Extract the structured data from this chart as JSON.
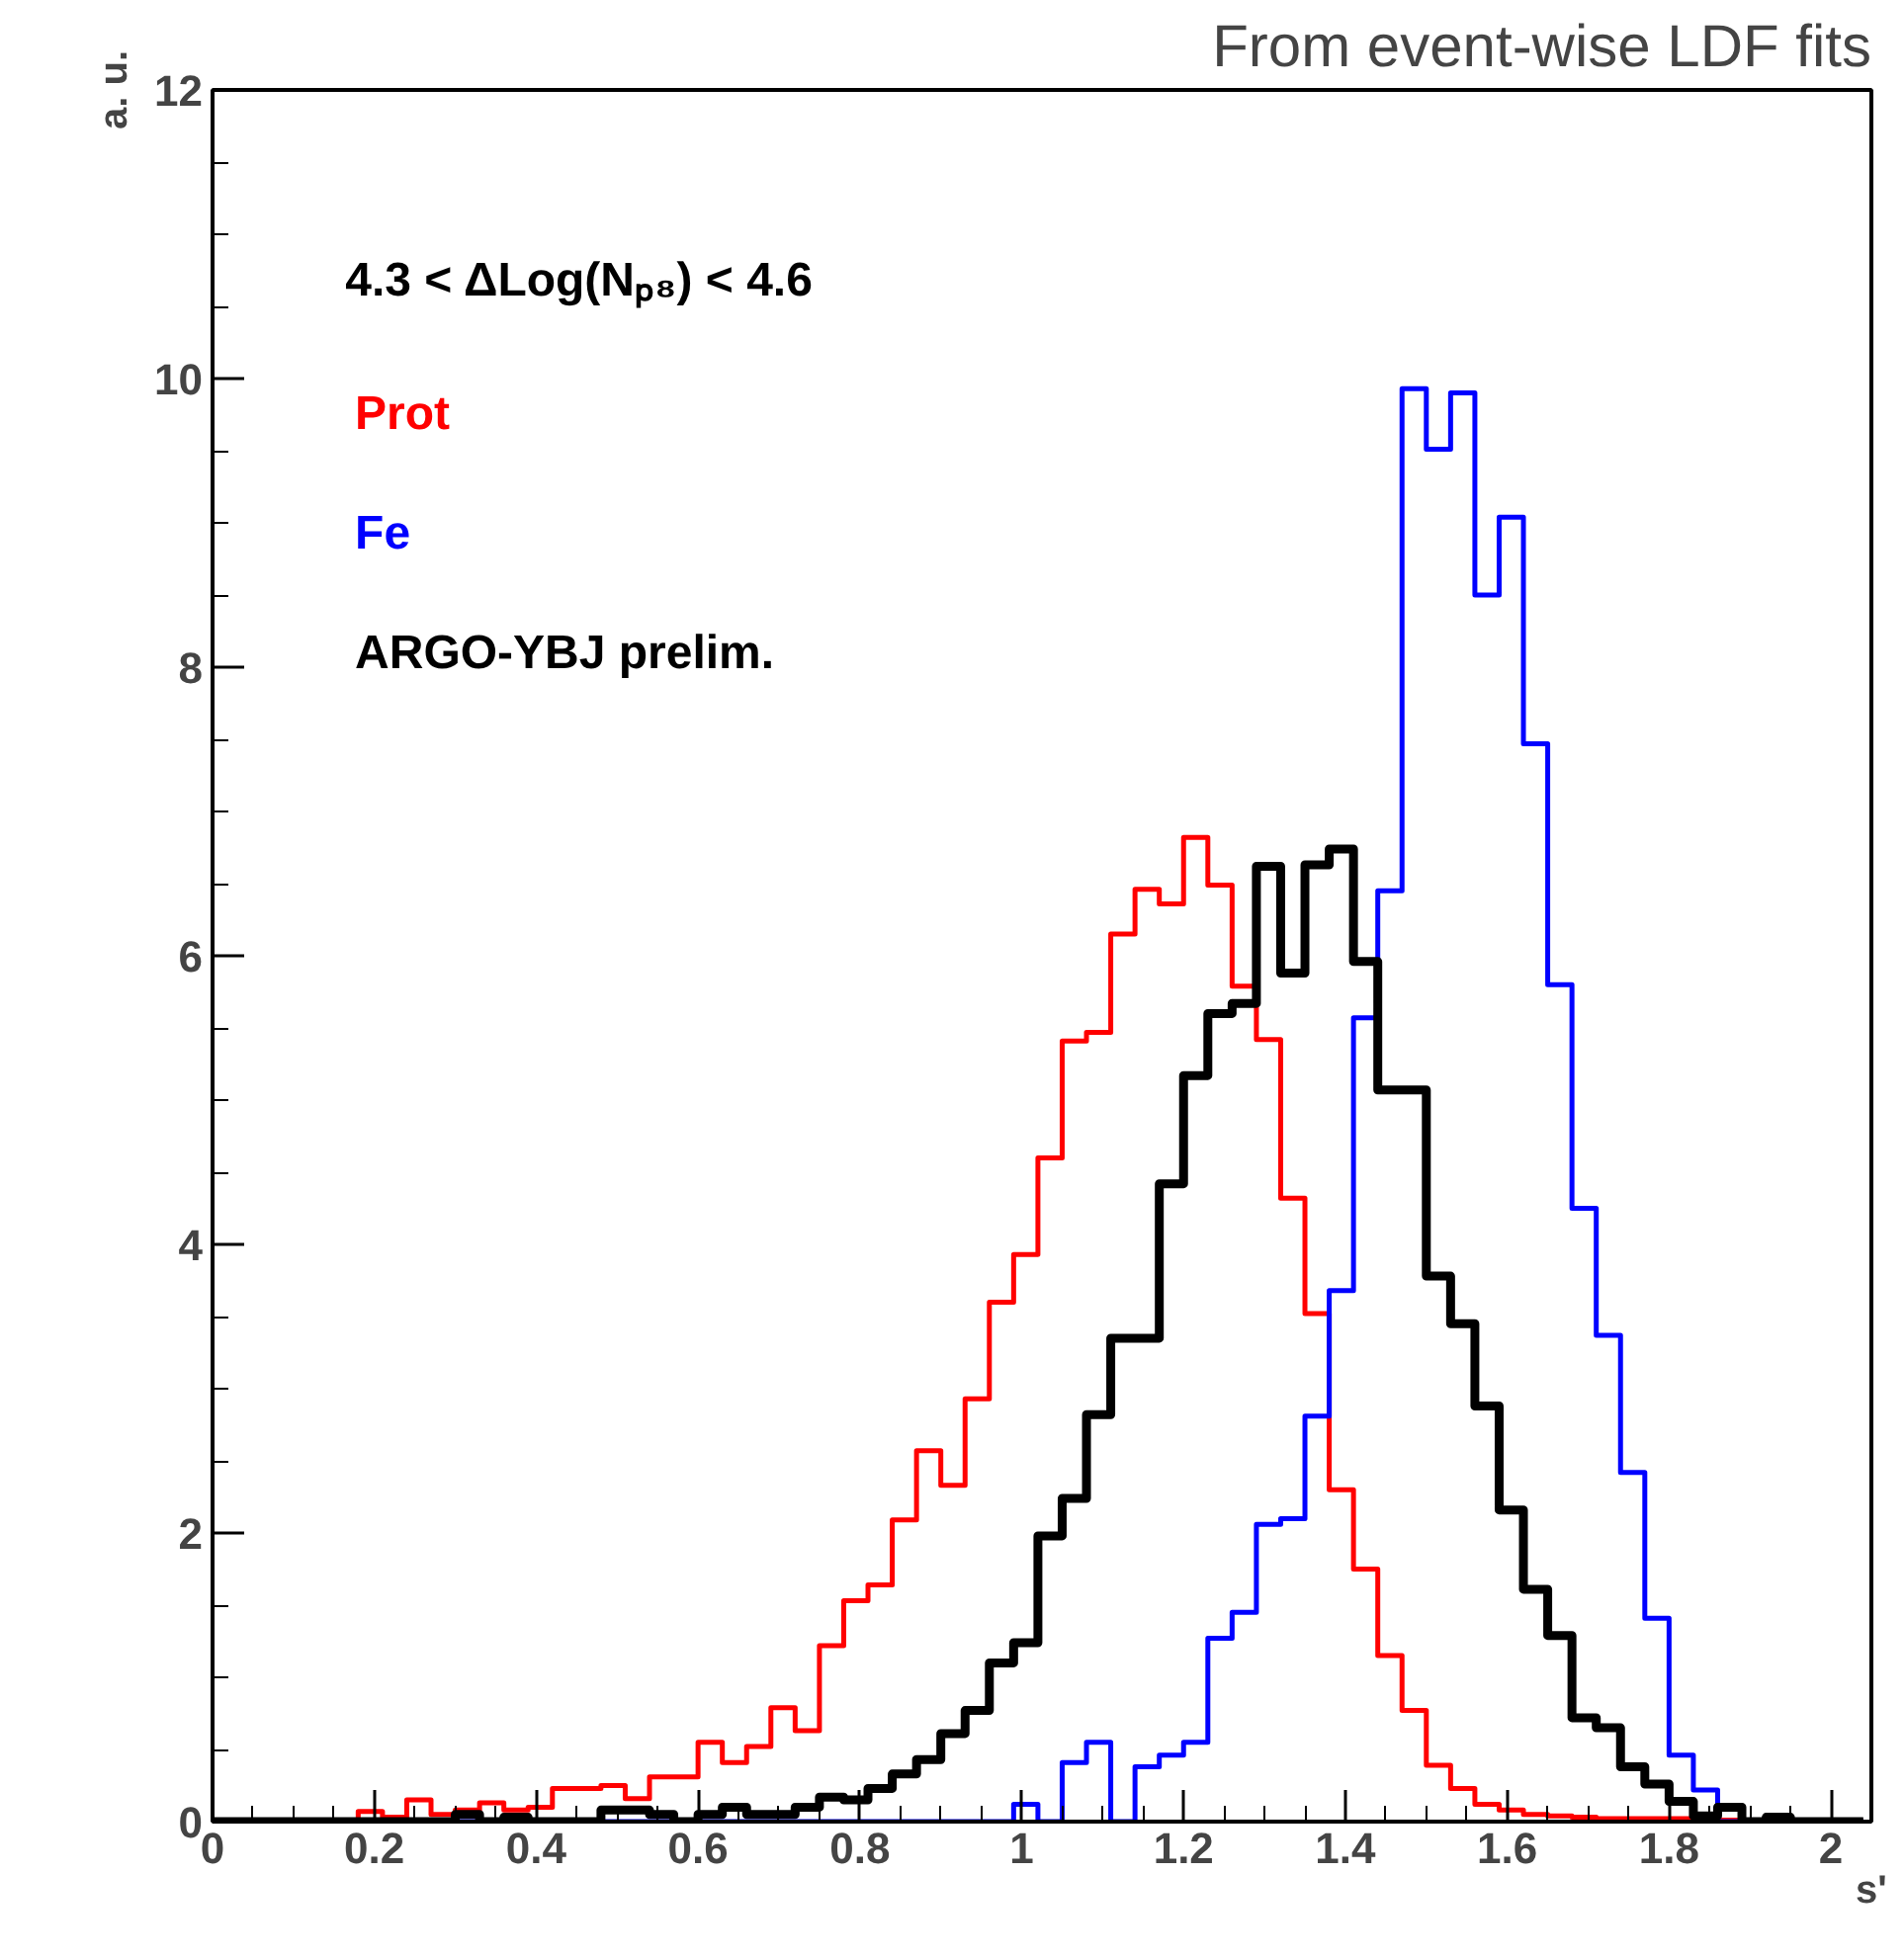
{
  "chart_data": {
    "type": "histogram",
    "title": "From event-wise LDF fits",
    "xlabel": "s'",
    "ylabel": "a. u.",
    "legend_title": "4.3 < ΔLog(Nₚ₈) < 4.6",
    "legend": "top left",
    "xlim": [
      0,
      2.05
    ],
    "ylim": [
      0,
      12
    ],
    "xticks": [
      0,
      0.2,
      0.4,
      0.6,
      0.8,
      1,
      1.2,
      1.4,
      1.6,
      1.8,
      2
    ],
    "yticks": [
      0,
      2,
      4,
      6,
      8,
      10,
      12
    ],
    "bins": [
      0,
      0.03,
      0.06,
      0.09,
      0.12,
      0.15,
      0.18,
      0.21,
      0.24,
      0.27,
      0.3,
      0.33,
      0.36,
      0.39,
      0.42,
      0.45,
      0.48,
      0.51,
      0.54,
      0.57,
      0.6,
      0.63,
      0.66,
      0.69,
      0.72,
      0.75,
      0.78,
      0.81,
      0.84,
      0.87,
      0.9,
      0.93,
      0.96,
      0.99,
      1.02,
      1.05,
      1.08,
      1.11,
      1.14,
      1.17,
      1.2,
      1.23,
      1.26,
      1.29,
      1.32,
      1.35,
      1.38,
      1.41,
      1.44,
      1.47,
      1.5,
      1.53,
      1.56,
      1.59,
      1.62,
      1.65,
      1.68,
      1.71,
      1.74,
      1.77,
      1.8,
      1.83,
      1.86,
      1.89,
      1.92,
      1.95,
      1.98,
      2.01,
      2.04
    ],
    "series": [
      {
        "name": "Prot",
        "color": "#ff0000",
        "values": [
          0,
          0,
          0,
          0,
          0,
          0,
          0.07,
          0.03,
          0.15,
          0.05,
          0.08,
          0.13,
          0.08,
          0.1,
          0.23,
          0.23,
          0.25,
          0.16,
          0.31,
          0.31,
          0.55,
          0.41,
          0.52,
          0.79,
          0.63,
          1.22,
          1.53,
          1.64,
          2.09,
          2.57,
          2.33,
          2.93,
          3.6,
          3.93,
          4.6,
          5.41,
          5.47,
          6.15,
          6.46,
          6.36,
          6.82,
          6.49,
          5.79,
          5.42,
          4.32,
          3.52,
          2.3,
          1.75,
          1.15,
          0.77,
          0.39,
          0.23,
          0.12,
          0.08,
          0.05,
          0.04,
          0.03,
          0.02,
          0.02,
          0.02,
          0.02,
          0.01,
          0.01,
          0,
          0,
          0,
          0,
          0
        ]
      },
      {
        "name": "Fe",
        "color": "#0000ff",
        "values": [
          0,
          0,
          0,
          0,
          0,
          0,
          0,
          0,
          0,
          0,
          0,
          0,
          0,
          0,
          0,
          0,
          0,
          0,
          0,
          0,
          0,
          0,
          0,
          0,
          0,
          0,
          0,
          0,
          0,
          0,
          0,
          0,
          0,
          0.12,
          0,
          0.41,
          0.55,
          0,
          0.38,
          0.46,
          0.55,
          1.27,
          1.45,
          2.06,
          2.1,
          2.81,
          3.68,
          5.57,
          6.45,
          9.93,
          9.51,
          9.9,
          8.5,
          9.04,
          7.47,
          5.8,
          4.25,
          3.37,
          2.42,
          1.41,
          0.46,
          0.22,
          0,
          0,
          0,
          0,
          0,
          0
        ]
      },
      {
        "name": "ARGO-YBJ prelim.",
        "color": "#000000",
        "values": [
          0,
          0,
          0,
          0,
          0,
          0,
          0,
          0,
          0,
          0,
          0.05,
          0,
          0.03,
          0,
          0,
          0,
          0.08,
          0.08,
          0.05,
          0,
          0.05,
          0.1,
          0.05,
          0.05,
          0.1,
          0.17,
          0.15,
          0.23,
          0.33,
          0.43,
          0.61,
          0.77,
          1.1,
          1.24,
          1.98,
          2.24,
          2.82,
          3.35,
          3.35,
          4.42,
          5.17,
          5.6,
          5.67,
          6.62,
          5.88,
          6.63,
          6.74,
          5.96,
          5.07,
          5.07,
          3.78,
          3.45,
          2.88,
          2.16,
          1.61,
          1.29,
          0.72,
          0.65,
          0.38,
          0.26,
          0.14,
          0.04,
          0.1,
          0,
          0.03,
          0,
          0,
          0
        ]
      }
    ]
  }
}
